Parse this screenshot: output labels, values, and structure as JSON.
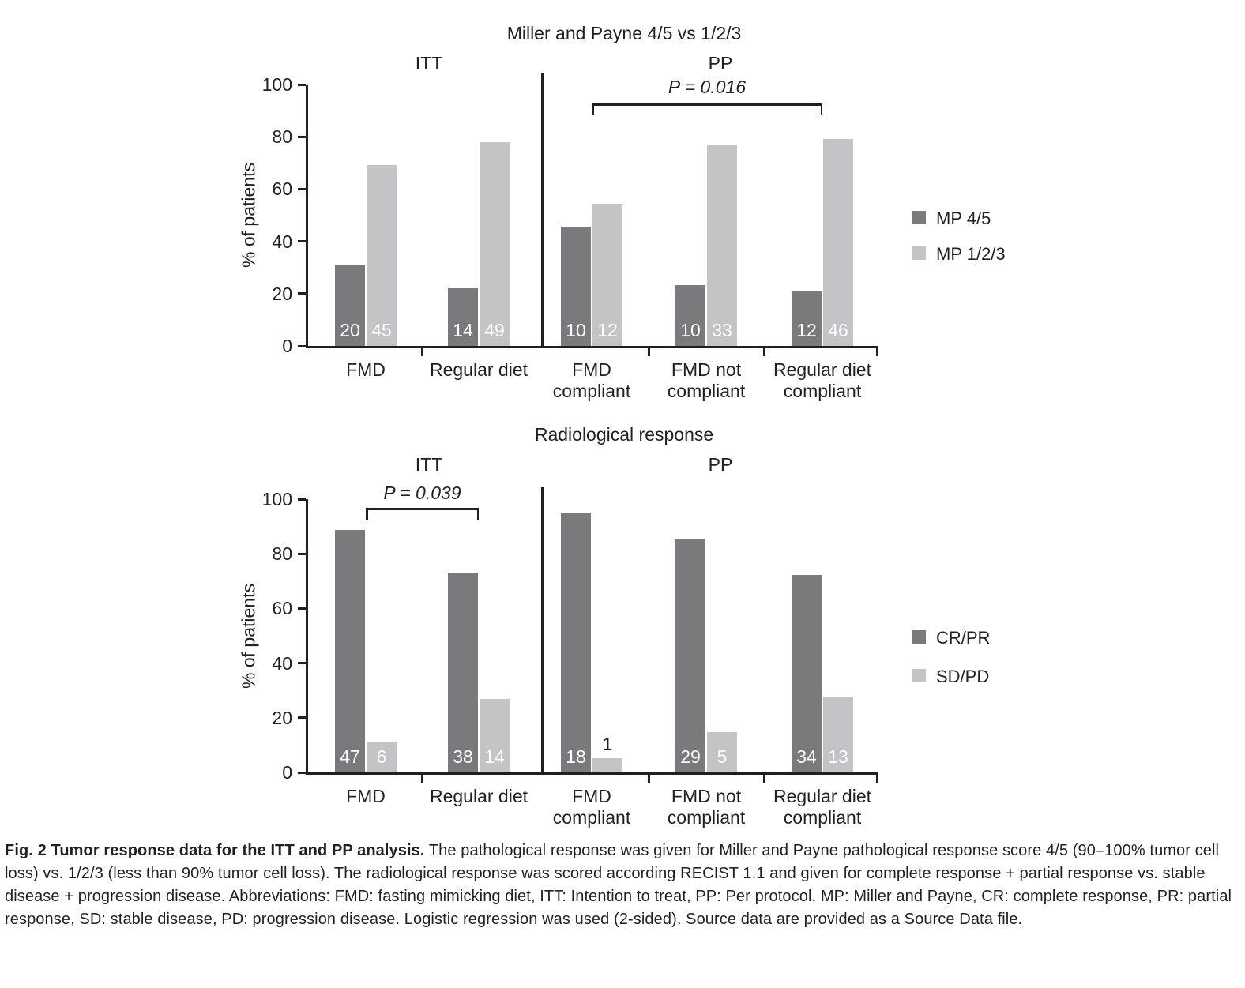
{
  "figure": {
    "caption_bold": "Fig. 2 Tumor response data for the ITT and PP analysis.",
    "caption_rest": "The pathological response was given for Miller and Payne pathological response score 4/5 (90–100% tumor cell loss) vs. 1/2/3 (less than 90% tumor cell loss). The radiological response was scored according RECIST 1.1 and given for complete response + partial response vs. stable disease + progression disease. Abbreviations: FMD: fasting mimicking diet, ITT: Intention to treat, PP: Per protocol, MP: Miller and Payne, CR: complete response, PR: partial response, SD: stable disease, PD: progression disease. Logistic regression was used (2-sided). Source data are provided as a Source Data file."
  },
  "colors": {
    "bar_dark": "#7a7a7c",
    "bar_light": "#c4c4c6",
    "axis": "#231f20",
    "bar_label": "#ffffff"
  },
  "chart_data": [
    {
      "type": "bar",
      "title": "Miller and Payne 4/5 vs 1/2/3",
      "panels": [
        "ITT",
        "PP"
      ],
      "ylabel": "% of patients",
      "ylim": [
        0,
        100
      ],
      "yticks": [
        0,
        20,
        40,
        60,
        80,
        100
      ],
      "series": [
        "MP 4/5",
        "MP 1/2/3"
      ],
      "legend": [
        {
          "label": "MP 4/5",
          "color": "#7a7a7c"
        },
        {
          "label": "MP 1/2/3",
          "color": "#c4c4c6"
        }
      ],
      "significance": {
        "label": "P = 0.016",
        "from_group": 2,
        "to_group": 4
      },
      "groups": [
        {
          "label": "FMD",
          "panel": "ITT",
          "values_pct": [
            30.8,
            69.2
          ],
          "counts": [
            20,
            45
          ]
        },
        {
          "label": "Regular diet",
          "panel": "ITT",
          "values_pct": [
            22.2,
            77.8
          ],
          "counts": [
            14,
            49
          ]
        },
        {
          "label": "FMD\ncompliant",
          "panel": "PP",
          "values_pct": [
            45.5,
            54.5
          ],
          "counts": [
            10,
            12
          ]
        },
        {
          "label": "FMD not\ncompliant",
          "panel": "PP",
          "values_pct": [
            23.3,
            76.7
          ],
          "counts": [
            10,
            33
          ]
        },
        {
          "label": "Regular diet\ncompliant",
          "panel": "PP",
          "values_pct": [
            20.7,
            79.3
          ],
          "counts": [
            12,
            46
          ]
        }
      ]
    },
    {
      "type": "bar",
      "title": "Radiological response",
      "panels": [
        "ITT",
        "PP"
      ],
      "ylabel": "% of patients",
      "ylim": [
        0,
        100
      ],
      "yticks": [
        0,
        20,
        40,
        60,
        80,
        100
      ],
      "series": [
        "CR/PR",
        "SD/PD"
      ],
      "legend": [
        {
          "label": "CR/PR",
          "color": "#7a7a7c"
        },
        {
          "label": "SD/PD",
          "color": "#c4c4c6"
        }
      ],
      "significance": {
        "label": "P = 0.039",
        "from_group": 0,
        "to_group": 1
      },
      "groups": [
        {
          "label": "FMD",
          "panel": "ITT",
          "values_pct": [
            88.7,
            11.3
          ],
          "counts": [
            47,
            6
          ]
        },
        {
          "label": "Regular diet",
          "panel": "ITT",
          "values_pct": [
            73.1,
            26.9
          ],
          "counts": [
            38,
            14
          ]
        },
        {
          "label": "FMD\ncompliant",
          "panel": "PP",
          "values_pct": [
            94.7,
            5.3
          ],
          "counts": [
            18,
            1
          ]
        },
        {
          "label": "FMD not\ncompliant",
          "panel": "PP",
          "values_pct": [
            85.3,
            14.7
          ],
          "counts": [
            29,
            5
          ]
        },
        {
          "label": "Regular diet\ncompliant",
          "panel": "PP",
          "values_pct": [
            72.3,
            27.7
          ],
          "counts": [
            34,
            13
          ]
        }
      ]
    }
  ]
}
